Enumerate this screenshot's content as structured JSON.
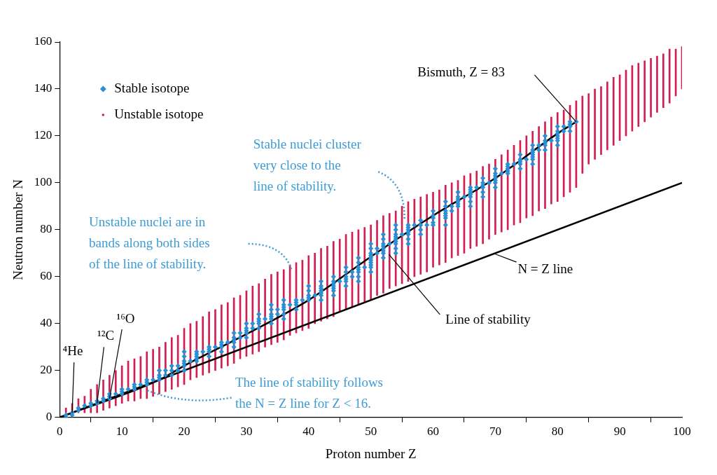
{
  "chart_data": {
    "type": "scatter",
    "x_label": "Proton number Z",
    "y_label": "Neutron number N",
    "xlim": [
      0,
      100
    ],
    "xticks": [
      0,
      10,
      20,
      30,
      40,
      50,
      60,
      70,
      80,
      90,
      100
    ],
    "ylim": [
      0,
      160
    ],
    "yticks": [
      0,
      20,
      40,
      60,
      80,
      100,
      120,
      140,
      160
    ],
    "grid": false,
    "legend": "upper left",
    "series": [
      {
        "name": "Unstable isotope",
        "type": "band",
        "marker": "dot",
        "color": "#d21f4f",
        "x": [
          1,
          2,
          3,
          4,
          5,
          6,
          7,
          8,
          9,
          10,
          11,
          12,
          13,
          14,
          15,
          16,
          17,
          18,
          19,
          20,
          21,
          22,
          23,
          24,
          25,
          26,
          27,
          28,
          29,
          30,
          31,
          32,
          33,
          34,
          35,
          36,
          37,
          38,
          39,
          40,
          41,
          42,
          43,
          44,
          45,
          46,
          47,
          48,
          49,
          50,
          51,
          52,
          53,
          54,
          55,
          56,
          57,
          58,
          59,
          60,
          61,
          62,
          63,
          64,
          65,
          66,
          67,
          68,
          69,
          70,
          71,
          72,
          73,
          74,
          75,
          76,
          77,
          78,
          79,
          80,
          81,
          82,
          83,
          84,
          85,
          86,
          87,
          88,
          89,
          90,
          91,
          92,
          93,
          94,
          95,
          96,
          97,
          98,
          99,
          100
        ],
        "low": [
          2,
          3,
          2,
          2,
          2,
          2,
          3,
          4,
          5,
          6,
          7,
          7,
          8,
          8,
          9,
          10,
          11,
          12,
          13,
          14,
          16,
          17,
          18,
          19,
          20,
          21,
          22,
          23,
          25,
          26,
          27,
          28,
          30,
          31,
          32,
          33,
          35,
          36,
          37,
          38,
          40,
          41,
          42,
          43,
          45,
          46,
          47,
          48,
          49,
          50,
          52,
          53,
          55,
          56,
          57,
          58,
          60,
          61,
          62,
          64,
          65,
          66,
          68,
          69,
          70,
          72,
          73,
          74,
          76,
          78,
          79,
          80,
          82,
          83,
          85,
          86,
          88,
          89,
          91,
          92,
          94,
          96,
          98,
          104,
          108,
          110,
          112,
          114,
          116,
          118,
          120,
          122,
          124,
          126,
          128,
          130,
          132,
          134,
          137,
          140
        ],
        "high": [
          4,
          6,
          8,
          9,
          12,
          14,
          16,
          18,
          20,
          22,
          24,
          25,
          26,
          28,
          29,
          30,
          32,
          34,
          35,
          38,
          40,
          41,
          43,
          45,
          46,
          48,
          49,
          51,
          52,
          54,
          56,
          57,
          59,
          61,
          62,
          63,
          65,
          66,
          67,
          69,
          70,
          72,
          73,
          75,
          76,
          78,
          79,
          80,
          81,
          82,
          84,
          86,
          87,
          88,
          90,
          92,
          93,
          94,
          95,
          96,
          97,
          99,
          100,
          101,
          103,
          104,
          105,
          107,
          108,
          110,
          112,
          114,
          116,
          118,
          120,
          122,
          124,
          126,
          128,
          130,
          131,
          133,
          135,
          137,
          138,
          140,
          141,
          143,
          145,
          146,
          148,
          150,
          151,
          152,
          153,
          154,
          155,
          157,
          157,
          158
        ]
      },
      {
        "type": "line",
        "color": "#000000",
        "x": [
          0,
          100
        ],
        "values": [
          0,
          100
        ]
      },
      {
        "type": "line",
        "color": "#000000",
        "x": [
          0,
          16,
          20,
          30,
          40,
          50,
          60,
          70,
          80,
          83
        ],
        "values": [
          0,
          16,
          22,
          35.5,
          50,
          68.5,
          86,
          102,
          121,
          126
        ]
      },
      {
        "name": "Stable isotope",
        "type": "scatter",
        "marker": "diamond",
        "color": "#2a8fd4",
        "x": [
          1,
          1,
          2,
          2,
          3,
          3,
          4,
          5,
          5,
          6,
          6,
          7,
          7,
          8,
          8,
          8,
          9,
          10,
          10,
          10,
          11,
          12,
          12,
          12,
          13,
          14,
          14,
          14,
          15,
          16,
          16,
          16,
          16,
          17,
          17,
          18,
          18,
          18,
          19,
          19,
          20,
          20,
          20,
          20,
          20,
          20,
          21,
          22,
          22,
          22,
          22,
          22,
          23,
          24,
          24,
          24,
          24,
          25,
          26,
          26,
          26,
          26,
          27,
          28,
          28,
          28,
          28,
          28,
          29,
          29,
          30,
          30,
          30,
          30,
          30,
          31,
          31,
          32,
          32,
          32,
          32,
          32,
          33,
          34,
          34,
          34,
          34,
          34,
          34,
          35,
          35,
          36,
          36,
          36,
          36,
          36,
          36,
          37,
          38,
          38,
          38,
          38,
          39,
          40,
          40,
          40,
          40,
          40,
          41,
          42,
          42,
          42,
          42,
          42,
          42,
          42,
          44,
          44,
          44,
          44,
          44,
          44,
          44,
          45,
          46,
          46,
          46,
          46,
          46,
          46,
          47,
          47,
          48,
          48,
          48,
          48,
          48,
          48,
          48,
          49,
          50,
          50,
          50,
          50,
          50,
          50,
          50,
          50,
          50,
          50,
          51,
          51,
          52,
          52,
          52,
          52,
          52,
          52,
          52,
          52,
          53,
          54,
          54,
          54,
          54,
          54,
          54,
          54,
          54,
          54,
          55,
          56,
          56,
          56,
          56,
          56,
          56,
          56,
          57,
          58,
          58,
          58,
          58,
          59,
          60,
          60,
          60,
          60,
          60,
          62,
          62,
          62,
          62,
          62,
          62,
          62,
          63,
          63,
          64,
          64,
          64,
          64,
          64,
          64,
          65,
          66,
          66,
          66,
          66,
          66,
          66,
          66,
          67,
          68,
          68,
          68,
          68,
          68,
          68,
          69,
          70,
          70,
          70,
          70,
          70,
          70,
          70,
          71,
          72,
          72,
          72,
          72,
          72,
          73,
          74,
          74,
          74,
          74,
          74,
          75,
          76,
          76,
          76,
          76,
          76,
          76,
          76,
          77,
          77,
          78,
          78,
          78,
          78,
          78,
          79,
          80,
          80,
          80,
          80,
          80,
          80,
          80,
          81,
          81,
          82,
          82,
          82,
          82,
          83
        ],
        "values": [
          0,
          1,
          1,
          2,
          3,
          4,
          5,
          5,
          6,
          6,
          7,
          7,
          8,
          8,
          9,
          10,
          10,
          10,
          11,
          12,
          12,
          12,
          13,
          14,
          14,
          14,
          15,
          16,
          16,
          16,
          17,
          18,
          20,
          18,
          20,
          18,
          20,
          22,
          20,
          22,
          20,
          22,
          23,
          24,
          26,
          28,
          24,
          24,
          25,
          26,
          27,
          28,
          28,
          26,
          28,
          29,
          30,
          30,
          28,
          30,
          31,
          32,
          32,
          30,
          32,
          33,
          34,
          36,
          34,
          36,
          34,
          36,
          37,
          38,
          40,
          38,
          40,
          38,
          40,
          41,
          42,
          44,
          42,
          40,
          42,
          43,
          44,
          46,
          48,
          44,
          46,
          42,
          44,
          46,
          47,
          48,
          50,
          48,
          46,
          48,
          49,
          50,
          50,
          50,
          51,
          52,
          54,
          56,
          52,
          50,
          52,
          53,
          54,
          55,
          56,
          58,
          52,
          54,
          55,
          56,
          57,
          58,
          60,
          58,
          56,
          58,
          59,
          60,
          62,
          64,
          60,
          62,
          58,
          60,
          62,
          63,
          64,
          66,
          68,
          64,
          62,
          64,
          65,
          66,
          67,
          68,
          69,
          70,
          72,
          74,
          70,
          72,
          68,
          70,
          71,
          72,
          73,
          74,
          76,
          78,
          74,
          70,
          72,
          74,
          75,
          76,
          77,
          78,
          80,
          82,
          78,
          74,
          76,
          78,
          79,
          80,
          81,
          82,
          82,
          78,
          80,
          82,
          84,
          82,
          82,
          83,
          85,
          86,
          88,
          82,
          85,
          86,
          87,
          88,
          90,
          92,
          88,
          90,
          90,
          91,
          92,
          93,
          94,
          96,
          94,
          90,
          92,
          94,
          95,
          96,
          97,
          98,
          98,
          94,
          96,
          98,
          99,
          100,
          102,
          100,
          98,
          100,
          101,
          102,
          103,
          104,
          106,
          104,
          104,
          105,
          106,
          107,
          108,
          108,
          106,
          108,
          109,
          110,
          112,
          110,
          108,
          110,
          111,
          112,
          113,
          114,
          116,
          114,
          116,
          114,
          116,
          117,
          118,
          120,
          118,
          116,
          118,
          119,
          120,
          121,
          122,
          124,
          122,
          124,
          122,
          124,
          125,
          126,
          126
        ]
      }
    ],
    "annotations": [
      {
        "text": [
          "⁴He"
        ]
      },
      {
        "text": [
          "¹²C"
        ]
      },
      {
        "text": [
          "¹⁶O"
        ]
      },
      {
        "text": [
          "Bismuth, Z = 83"
        ]
      },
      {
        "text": [
          "Stable nuclei cluster",
          "very close to the",
          "line of stability."
        ]
      },
      {
        "text": [
          "Unstable nuclei are in",
          "bands along both sides",
          "of the line of stability."
        ]
      },
      {
        "text": [
          "The line of stability follows",
          "the N = Z line for Z < 16."
        ]
      },
      {
        "text": [
          "Line of stability"
        ]
      },
      {
        "text": [
          "N = Z line"
        ]
      }
    ]
  }
}
